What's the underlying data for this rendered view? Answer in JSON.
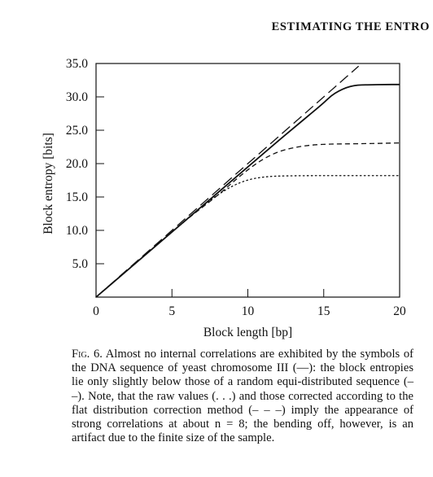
{
  "running_head": "ESTIMATING THE ENTRO",
  "chart_data": {
    "type": "line",
    "xlabel": "Block length [bp]",
    "ylabel": "Block entropy [bits]",
    "xlim": [
      0,
      20
    ],
    "ylim": [
      0,
      35
    ],
    "xticks": [
      "0",
      "5",
      "10",
      "15",
      "20"
    ],
    "yticks": [
      "5.0",
      "10.0",
      "15.0",
      "20.0",
      "25.0",
      "30.0",
      "35.0"
    ],
    "grid": false,
    "legend": "none",
    "series": [
      {
        "style": "long-dash",
        "x": [
          0,
          17.3
        ],
        "y": [
          0,
          34.6
        ]
      },
      {
        "style": "solid",
        "x": [
          0,
          2,
          4,
          6,
          8,
          10,
          12,
          13,
          14,
          15,
          15.5,
          16,
          16.5,
          17,
          17.5,
          18,
          19,
          20
        ],
        "y": [
          0,
          3.9,
          7.8,
          11.7,
          15.6,
          19.5,
          23.4,
          25.3,
          27.2,
          29.1,
          30.2,
          30.9,
          31.4,
          31.7,
          31.8,
          31.8,
          31.85,
          31.85
        ]
      },
      {
        "style": "short-dash",
        "x": [
          0,
          2,
          4,
          6,
          8,
          9,
          10,
          11,
          12,
          13,
          14,
          15,
          16,
          18,
          20
        ],
        "y": [
          0,
          3.9,
          7.8,
          11.7,
          15.2,
          17.2,
          19.1,
          20.7,
          21.8,
          22.4,
          22.75,
          22.9,
          22.95,
          23.0,
          23.1
        ]
      },
      {
        "style": "dotted",
        "x": [
          0,
          2,
          4,
          6,
          7,
          8,
          9,
          10,
          11,
          12,
          14,
          16,
          18,
          20
        ],
        "y": [
          0,
          3.9,
          7.8,
          11.7,
          13.6,
          15.3,
          16.7,
          17.6,
          18.0,
          18.15,
          18.2,
          18.2,
          18.2,
          18.2
        ]
      }
    ]
  },
  "caption": {
    "label": "Fig. 6.",
    "text": " Almost no internal correlations are exhibited by the symbols of the DNA sequence of yeast chromosome III (—): the block entropies lie only slightly below those of a random equi-distributed sequence (– –). Note, that the raw values (. . .) and those corrected according to the flat distribution correction method (– – –) imply the appearance of strong correlations at about n = 8; the bending off, however, is an artifact due to the finite size of the sample."
  }
}
